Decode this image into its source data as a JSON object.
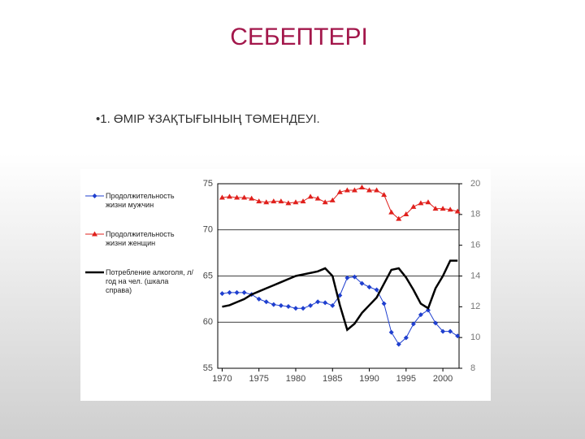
{
  "slide": {
    "title": "СЕБЕПТЕРІ",
    "bullet": "•1. ӨМІР ҰЗАҚТЫҒЫНЫҢ ТӨМЕНДЕУІ."
  },
  "chart_data": {
    "type": "line",
    "x": [
      1970,
      1971,
      1972,
      1973,
      1974,
      1975,
      1976,
      1977,
      1978,
      1979,
      1980,
      1981,
      1982,
      1983,
      1984,
      1985,
      1986,
      1987,
      1988,
      1989,
      1990,
      1991,
      1992,
      1993,
      1994,
      1995,
      1996,
      1997,
      1998,
      1999,
      2000,
      2001,
      2002
    ],
    "series": [
      {
        "name": "Продолжительность жизни мужчин",
        "color": "#1f3fcf",
        "marker": "diamond",
        "values": [
          63.1,
          63.2,
          63.2,
          63.2,
          63.0,
          62.5,
          62.2,
          61.9,
          61.8,
          61.7,
          61.5,
          61.5,
          61.8,
          62.2,
          62.1,
          61.8,
          62.9,
          64.8,
          64.9,
          64.2,
          63.8,
          63.5,
          62.0,
          58.9,
          57.6,
          58.3,
          59.8,
          60.8,
          61.3,
          59.9,
          59.0,
          59.0,
          58.5
        ]
      },
      {
        "name": "Продолжительность жизни женщин",
        "color": "#e0201c",
        "marker": "triangle",
        "values": [
          73.5,
          73.6,
          73.5,
          73.5,
          73.4,
          73.1,
          73.0,
          73.1,
          73.1,
          72.9,
          73.0,
          73.1,
          73.6,
          73.4,
          73.0,
          73.2,
          74.1,
          74.3,
          74.3,
          74.6,
          74.3,
          74.3,
          73.8,
          71.9,
          71.2,
          71.7,
          72.5,
          72.9,
          73.0,
          72.3,
          72.3,
          72.2,
          72.0
        ]
      },
      {
        "name": "Потребление алкоголя, л/год на чел. (шкала справа)",
        "color": "#000000",
        "marker": "none",
        "axis": "y2",
        "values": [
          12.0,
          12.1,
          12.3,
          12.5,
          12.8,
          13.0,
          13.2,
          13.4,
          13.6,
          13.8,
          14.0,
          14.1,
          14.2,
          14.3,
          14.5,
          14.0,
          12.1,
          10.5,
          10.9,
          11.6,
          12.1,
          12.6,
          13.5,
          14.4,
          14.5,
          13.9,
          13.1,
          12.2,
          11.9,
          13.2,
          14.0,
          15.0,
          15.0
        ]
      }
    ],
    "xlim": [
      1969.4,
      2002.2
    ],
    "xticks": [
      1970,
      1975,
      1980,
      1985,
      1990,
      1995,
      2000
    ],
    "ylim": [
      55,
      75
    ],
    "yticks": [
      55,
      60,
      65,
      70,
      75
    ],
    "y2lim": [
      8,
      20
    ],
    "y2ticks": [
      8,
      10,
      12,
      14,
      16,
      18,
      20
    ],
    "grid": true,
    "legend": "left"
  }
}
